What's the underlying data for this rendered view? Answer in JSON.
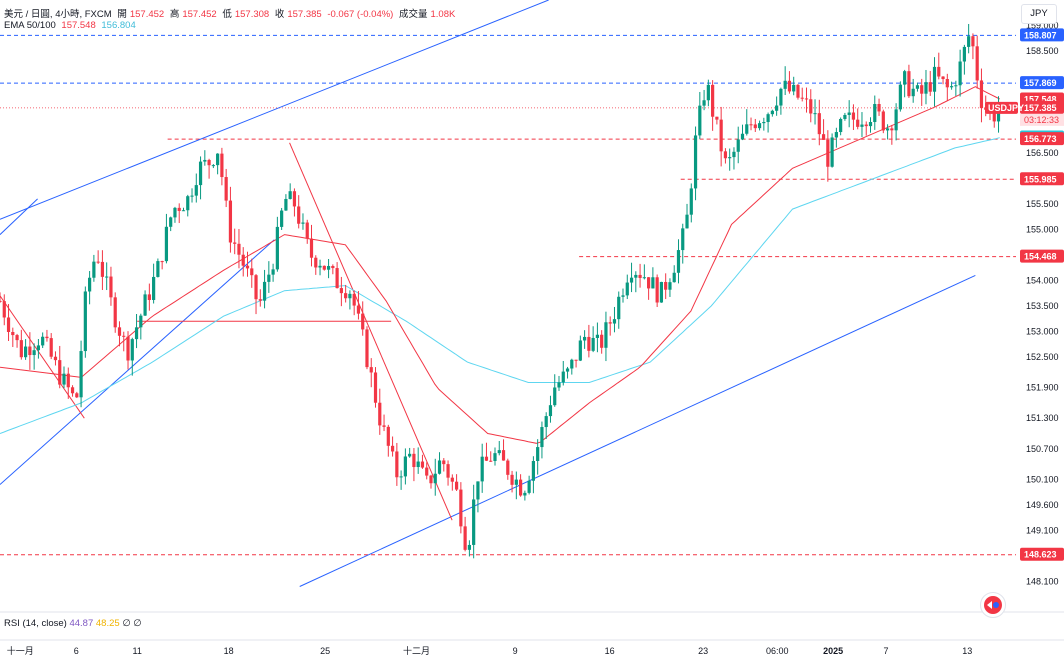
{
  "header": {
    "symbol_name": "美元 / 日圓, 4小時, FXCM",
    "open_label": "開",
    "open": "157.452",
    "high_label": "高",
    "high": "157.452",
    "low_label": "低",
    "low": "157.308",
    "close_label": "收",
    "close": "157.385",
    "change": "-0.067 (-0.04%)",
    "volume_label": "成交量",
    "volume": "1.08K",
    "ema_label": "EMA 50/100",
    "ema50": "157.548",
    "ema100": "156.804"
  },
  "currency_button": "JPY",
  "rsi": {
    "label": "RSI (14, close)",
    "v1": "44.87",
    "v2": "48.25",
    "v3": "∅",
    "v4": "∅"
  },
  "colors": {
    "up": "#089981",
    "down": "#f23645",
    "ema50": "#f23645",
    "ema100": "#5ed6f0",
    "trend": "#2962ff",
    "level_blue": "#2962ff",
    "level_red": "#f23645"
  },
  "chart_data": {
    "type": "candlestick",
    "symbol": "USDJPY",
    "timeframe": "4小時",
    "ylim": [
      147.5,
      159.5
    ],
    "y_ticks": [
      "159.000",
      "158.500",
      "157.500",
      "156.500",
      "155.500",
      "155.000",
      "154.000",
      "153.500",
      "153.000",
      "152.500",
      "151.900",
      "151.300",
      "150.700",
      "150.100",
      "149.600",
      "149.100",
      "148.100"
    ],
    "x_ticks": [
      "十一月",
      "6",
      "11",
      "18",
      "25",
      "十二月",
      "9",
      "16",
      "23",
      "06:00",
      "2025",
      "7",
      "13"
    ],
    "price_labels": [
      {
        "value": "158.807",
        "kind": "level"
      },
      {
        "value": "157.869",
        "kind": "level"
      },
      {
        "value": "157.548",
        "kind": "ema50"
      },
      {
        "value": "157.385",
        "kind": "last",
        "symbol": "USDJPY",
        "countdown": "03:12:33"
      },
      {
        "value": "156.804",
        "kind": "ema100"
      },
      {
        "value": "156.773",
        "kind": "level"
      },
      {
        "value": "155.985",
        "kind": "level"
      },
      {
        "value": "154.468",
        "kind": "level"
      },
      {
        "value": "148.623",
        "kind": "level"
      }
    ],
    "horizontal_levels": [
      {
        "price": 158.807,
        "style": "dashed",
        "color": "blue"
      },
      {
        "price": 157.869,
        "style": "dashed",
        "color": "blue"
      },
      {
        "price": 156.773,
        "style": "dashed",
        "color": "red",
        "from": 0.165
      },
      {
        "price": 155.985,
        "style": "dashed",
        "color": "red",
        "from": 0.67
      },
      {
        "price": 154.468,
        "style": "dashed",
        "color": "red",
        "from": 0.57
      },
      {
        "price": 148.623,
        "style": "dashed",
        "color": "red"
      }
    ],
    "close_path": [
      [
        0.0,
        153.6
      ],
      [
        0.02,
        152.6
      ],
      [
        0.04,
        152.9
      ],
      [
        0.06,
        152.1
      ],
      [
        0.075,
        151.6
      ],
      [
        0.085,
        153.8
      ],
      [
        0.095,
        154.6
      ],
      [
        0.11,
        153.5
      ],
      [
        0.125,
        152.6
      ],
      [
        0.14,
        153.4
      ],
      [
        0.155,
        154.2
      ],
      [
        0.17,
        155.4
      ],
      [
        0.185,
        155.6
      ],
      [
        0.195,
        156.2
      ],
      [
        0.205,
        156.3
      ],
      [
        0.215,
        156.6
      ],
      [
        0.225,
        155.0
      ],
      [
        0.24,
        154.3
      ],
      [
        0.255,
        153.5
      ],
      [
        0.27,
        154.5
      ],
      [
        0.28,
        155.6
      ],
      [
        0.29,
        155.5
      ],
      [
        0.305,
        154.5
      ],
      [
        0.315,
        154.4
      ],
      [
        0.33,
        154.0
      ],
      [
        0.345,
        153.8
      ],
      [
        0.36,
        152.6
      ],
      [
        0.375,
        151.2
      ],
      [
        0.39,
        150.2
      ],
      [
        0.405,
        150.6
      ],
      [
        0.42,
        150.0
      ],
      [
        0.435,
        150.5
      ],
      [
        0.45,
        149.8
      ],
      [
        0.46,
        148.7
      ],
      [
        0.47,
        150.2
      ],
      [
        0.485,
        150.6
      ],
      [
        0.5,
        150.3
      ],
      [
        0.515,
        149.9
      ],
      [
        0.53,
        150.8
      ],
      [
        0.545,
        151.9
      ],
      [
        0.56,
        152.2
      ],
      [
        0.575,
        152.9
      ],
      [
        0.59,
        152.7
      ],
      [
        0.605,
        153.4
      ],
      [
        0.62,
        154.3
      ],
      [
        0.635,
        154.1
      ],
      [
        0.65,
        153.7
      ],
      [
        0.665,
        154.4
      ],
      [
        0.675,
        155.0
      ],
      [
        0.685,
        156.8
      ],
      [
        0.695,
        157.9
      ],
      [
        0.705,
        157.0
      ],
      [
        0.715,
        156.2
      ],
      [
        0.725,
        156.6
      ],
      [
        0.74,
        157.1
      ],
      [
        0.755,
        157.3
      ],
      [
        0.77,
        157.8
      ],
      [
        0.785,
        157.6
      ],
      [
        0.8,
        157.3
      ],
      [
        0.815,
        156.4
      ],
      [
        0.83,
        157.1
      ],
      [
        0.845,
        157.2
      ],
      [
        0.86,
        157.3
      ],
      [
        0.875,
        157.0
      ],
      [
        0.89,
        157.9
      ],
      [
        0.905,
        157.6
      ],
      [
        0.92,
        158.0
      ],
      [
        0.935,
        157.7
      ],
      [
        0.945,
        158.2
      ],
      [
        0.955,
        158.9
      ],
      [
        0.965,
        157.6
      ],
      [
        0.975,
        157.2
      ],
      [
        0.985,
        157.385
      ]
    ],
    "ema50": [
      [
        0.0,
        152.3
      ],
      [
        0.08,
        152.1
      ],
      [
        0.15,
        153.3
      ],
      [
        0.22,
        154.2
      ],
      [
        0.28,
        154.9
      ],
      [
        0.34,
        154.7
      ],
      [
        0.38,
        153.6
      ],
      [
        0.43,
        151.9
      ],
      [
        0.48,
        151.0
      ],
      [
        0.53,
        150.8
      ],
      [
        0.58,
        151.6
      ],
      [
        0.63,
        152.3
      ],
      [
        0.68,
        153.4
      ],
      [
        0.72,
        155.1
      ],
      [
        0.78,
        156.2
      ],
      [
        0.85,
        156.8
      ],
      [
        0.92,
        157.4
      ],
      [
        0.96,
        157.8
      ],
      [
        0.985,
        157.548
      ]
    ],
    "ema100": [
      [
        0.0,
        151.0
      ],
      [
        0.08,
        151.6
      ],
      [
        0.15,
        152.4
      ],
      [
        0.22,
        153.3
      ],
      [
        0.28,
        153.8
      ],
      [
        0.34,
        153.9
      ],
      [
        0.4,
        153.2
      ],
      [
        0.46,
        152.4
      ],
      [
        0.52,
        152.0
      ],
      [
        0.58,
        152.0
      ],
      [
        0.64,
        152.4
      ],
      [
        0.7,
        153.5
      ],
      [
        0.78,
        155.4
      ],
      [
        0.86,
        156.0
      ],
      [
        0.94,
        156.6
      ],
      [
        0.985,
        156.804
      ]
    ],
    "trendlines": [
      {
        "p1": [
          0.0,
          155.2
        ],
        "p2": [
          0.54,
          159.5
        ],
        "color": "blue"
      },
      {
        "p1": [
          0.0,
          150.0
        ],
        "p2": [
          0.27,
          154.8
        ],
        "color": "blue"
      },
      {
        "p1": [
          0.0,
          154.9
        ],
        "p2": [
          0.037,
          155.6
        ],
        "color": "blue"
      },
      {
        "p1": [
          0.295,
          148.0
        ],
        "p2": [
          0.96,
          154.1
        ],
        "color": "blue"
      },
      {
        "p1": [
          0.285,
          156.7
        ],
        "p2": [
          0.445,
          149.3
        ],
        "color": "red"
      },
      {
        "p1": [
          0.0,
          153.7
        ],
        "p2": [
          0.083,
          151.3
        ],
        "color": "red"
      },
      {
        "p1": [
          0.135,
          153.2
        ],
        "p2": [
          0.385,
          153.2
        ],
        "color": "red"
      }
    ]
  }
}
